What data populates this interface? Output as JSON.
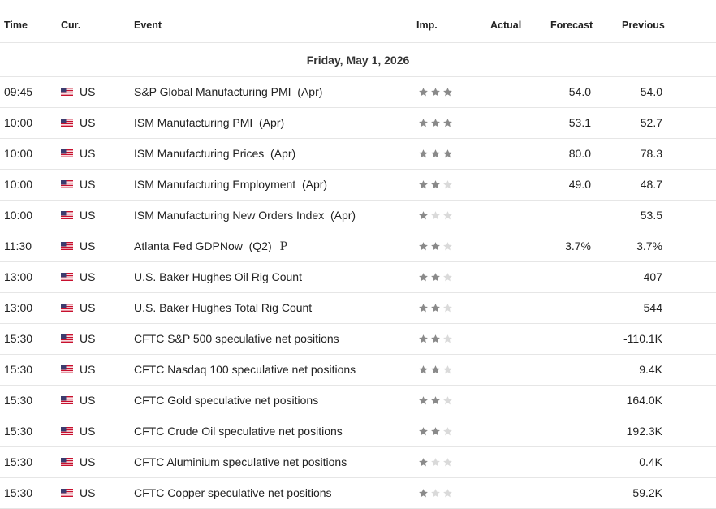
{
  "header": {
    "time": "Time",
    "currency": "Cur.",
    "event": "Event",
    "importance": "Imp.",
    "actual": "Actual",
    "forecast": "Forecast",
    "previous": "Previous"
  },
  "date_label": "Friday, May 1, 2026",
  "colors": {
    "star_active": "#8a8a8a",
    "star_inactive": "#dadada",
    "divider": "#e6e6e6"
  },
  "rows": [
    {
      "time": "09:45",
      "currency": "US",
      "event": "S&P Global Manufacturing PMI  (Apr)",
      "importance": 3,
      "actual": "",
      "forecast": "54.0",
      "previous": "54.0",
      "prelim": ""
    },
    {
      "time": "10:00",
      "currency": "US",
      "event": "ISM Manufacturing PMI  (Apr)",
      "importance": 3,
      "actual": "",
      "forecast": "53.1",
      "previous": "52.7",
      "prelim": ""
    },
    {
      "time": "10:00",
      "currency": "US",
      "event": "ISM Manufacturing Prices  (Apr)",
      "importance": 3,
      "actual": "",
      "forecast": "80.0",
      "previous": "78.3",
      "prelim": ""
    },
    {
      "time": "10:00",
      "currency": "US",
      "event": "ISM Manufacturing Employment  (Apr)",
      "importance": 2,
      "actual": "",
      "forecast": "49.0",
      "previous": "48.7",
      "prelim": ""
    },
    {
      "time": "10:00",
      "currency": "US",
      "event": "ISM Manufacturing New Orders Index  (Apr)",
      "importance": 1,
      "actual": "",
      "forecast": "",
      "previous": "53.5",
      "prelim": ""
    },
    {
      "time": "11:30",
      "currency": "US",
      "event": "Atlanta Fed GDPNow  (Q2)",
      "importance": 2,
      "actual": "",
      "forecast": "3.7%",
      "previous": "3.7%",
      "prelim": "P"
    },
    {
      "time": "13:00",
      "currency": "US",
      "event": "U.S. Baker Hughes Oil Rig Count",
      "importance": 2,
      "actual": "",
      "forecast": "",
      "previous": "407",
      "prelim": ""
    },
    {
      "time": "13:00",
      "currency": "US",
      "event": "U.S. Baker Hughes Total Rig Count",
      "importance": 2,
      "actual": "",
      "forecast": "",
      "previous": "544",
      "prelim": ""
    },
    {
      "time": "15:30",
      "currency": "US",
      "event": "CFTC S&P 500 speculative net positions",
      "importance": 2,
      "actual": "",
      "forecast": "",
      "previous": "-110.1K",
      "prelim": ""
    },
    {
      "time": "15:30",
      "currency": "US",
      "event": "CFTC Nasdaq 100 speculative net positions",
      "importance": 2,
      "actual": "",
      "forecast": "",
      "previous": "9.4K",
      "prelim": ""
    },
    {
      "time": "15:30",
      "currency": "US",
      "event": "CFTC Gold speculative net positions",
      "importance": 2,
      "actual": "",
      "forecast": "",
      "previous": "164.0K",
      "prelim": ""
    },
    {
      "time": "15:30",
      "currency": "US",
      "event": "CFTC Crude Oil speculative net positions",
      "importance": 2,
      "actual": "",
      "forecast": "",
      "previous": "192.3K",
      "prelim": ""
    },
    {
      "time": "15:30",
      "currency": "US",
      "event": "CFTC Aluminium speculative net positions",
      "importance": 1,
      "actual": "",
      "forecast": "",
      "previous": "0.4K",
      "prelim": ""
    },
    {
      "time": "15:30",
      "currency": "US",
      "event": "CFTC Copper speculative net positions",
      "importance": 1,
      "actual": "",
      "forecast": "",
      "previous": "59.2K",
      "prelim": ""
    }
  ]
}
